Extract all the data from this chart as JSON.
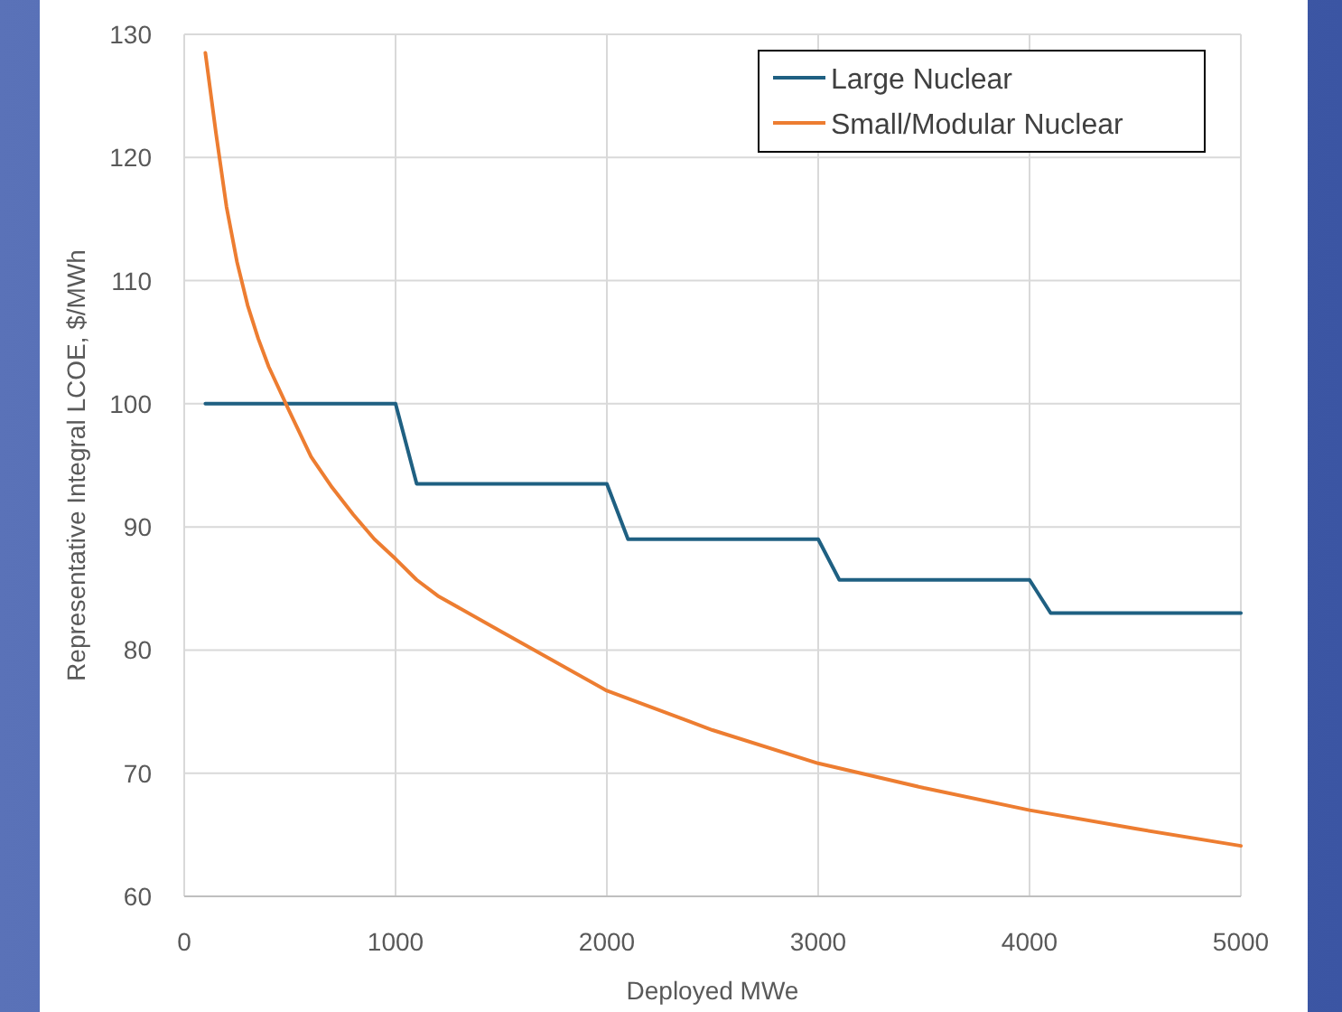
{
  "chart_data": {
    "type": "line",
    "xlabel": "Deployed MWe",
    "ylabel": "Representative Integral LCOE, $/MWh",
    "xlim": [
      0,
      5000
    ],
    "xticks": [
      0,
      1000,
      2000,
      3000,
      4000,
      5000
    ],
    "ylim": [
      60,
      130
    ],
    "yticks": [
      60,
      70,
      80,
      90,
      100,
      110,
      120,
      130
    ],
    "grid": true,
    "legend": "top right",
    "marker": "none",
    "line_style": "solid",
    "series": [
      {
        "name": "Large Nuclear",
        "color": "#1f6082",
        "x": [
          100,
          1000,
          1100,
          2000,
          2100,
          3000,
          3100,
          4000,
          4100,
          5000
        ],
        "values": [
          100,
          100,
          93.5,
          93.5,
          89,
          89,
          85.7,
          85.7,
          83,
          83
        ]
      },
      {
        "name": "Small/Modular Nuclear",
        "color": "#ed7d31",
        "x": [
          100,
          150,
          200,
          250,
          300,
          350,
          400,
          500,
          600,
          700,
          800,
          900,
          1000,
          1100,
          1200,
          1500,
          2000,
          2500,
          3000,
          3500,
          4000,
          4500,
          5000
        ],
        "values": [
          128.5,
          122,
          116,
          111.5,
          108,
          105.3,
          103,
          99.3,
          95.7,
          93.2,
          91,
          89,
          87.4,
          85.7,
          84.4,
          81.5,
          76.7,
          73.5,
          70.8,
          68.8,
          67,
          65.5,
          64.1
        ]
      }
    ]
  }
}
